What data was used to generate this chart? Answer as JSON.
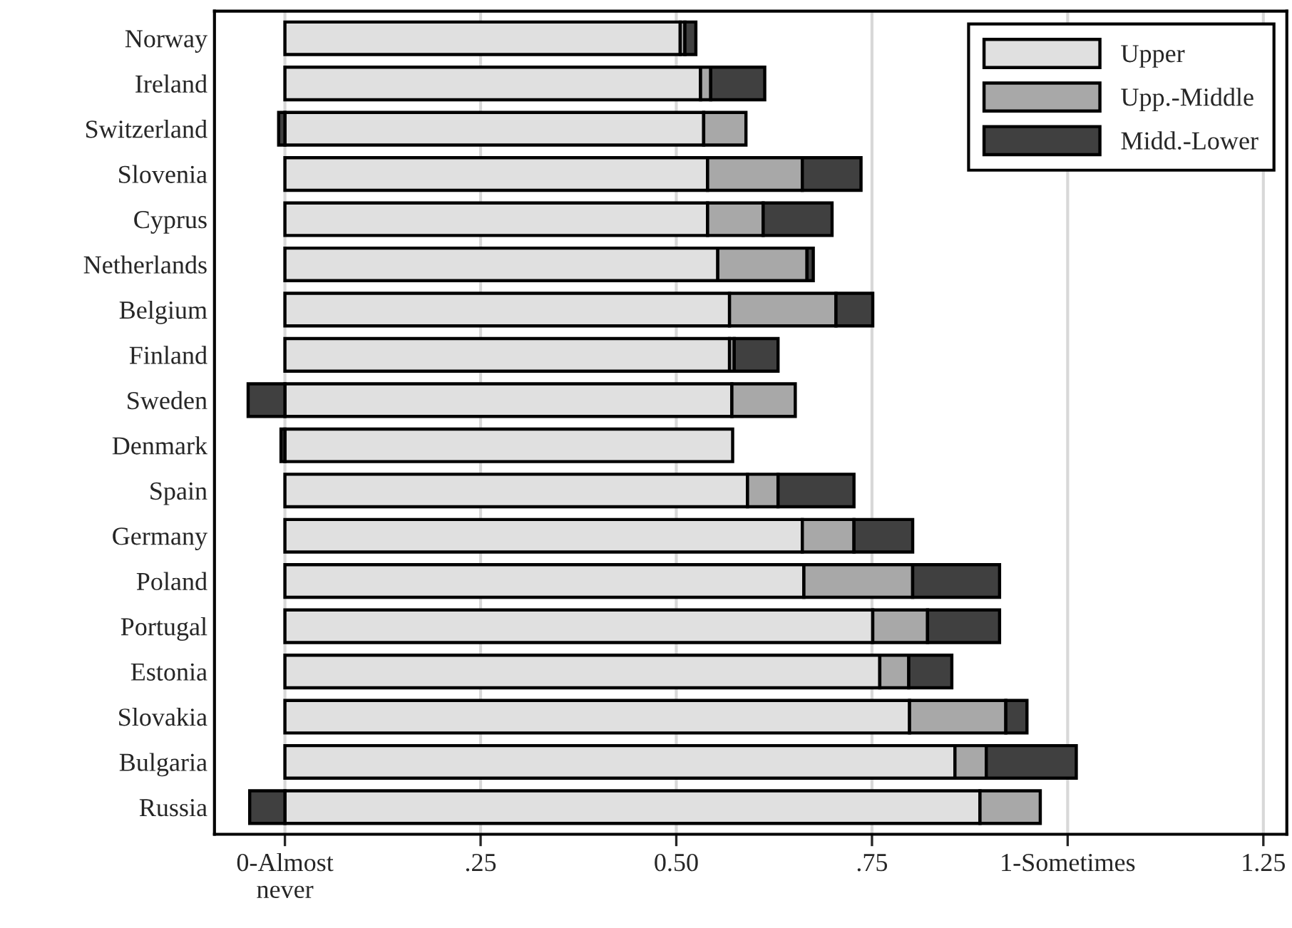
{
  "chart_data": {
    "type": "bar",
    "orientation": "horizontal",
    "stacked": true,
    "categories": [
      "Norway",
      "Ireland",
      "Switzerland",
      "Slovenia",
      "Cyprus",
      "Netherlands",
      "Belgium",
      "Finland",
      "Sweden",
      "Denmark",
      "Spain",
      "Germany",
      "Poland",
      "Portugal",
      "Estonia",
      "Slovakia",
      "Bulgaria",
      "Russia"
    ],
    "series": [
      {
        "name": "Upper",
        "color": "#e0e0e0",
        "values": [
          0.505,
          0.531,
          0.535,
          0.54,
          0.54,
          0.553,
          0.568,
          0.568,
          0.571,
          0.572,
          0.591,
          0.661,
          0.663,
          0.751,
          0.76,
          0.798,
          0.856,
          0.888
        ]
      },
      {
        "name": "Upp.-Middle",
        "color": "#a8a8a8",
        "values": [
          0.006,
          0.013,
          0.054,
          0.121,
          0.071,
          0.114,
          0.136,
          0.006,
          0.081,
          null,
          0.039,
          0.066,
          0.139,
          0.07,
          0.037,
          0.123,
          0.04,
          0.077
        ]
      },
      {
        "name": "Midd.-Lower",
        "color": "#404040",
        "values": [
          0.014,
          0.069,
          -0.008,
          0.075,
          0.088,
          0.008,
          0.047,
          0.056,
          -0.047,
          -0.005,
          0.097,
          0.075,
          0.111,
          0.092,
          0.055,
          0.027,
          0.115,
          -0.045
        ]
      }
    ],
    "xlim": [
      -0.09,
      1.28
    ],
    "xticks": [
      {
        "value": 0,
        "label": "0-Almost\nnever"
      },
      {
        "value": 0.25,
        "label": ".25"
      },
      {
        "value": 0.5,
        "label": "0.50"
      },
      {
        "value": 0.75,
        "label": ".75"
      },
      {
        "value": 1,
        "label": "1-Sometimes"
      },
      {
        "value": 1.25,
        "label": "1.25"
      }
    ],
    "grid": "x",
    "legend": "top right"
  }
}
